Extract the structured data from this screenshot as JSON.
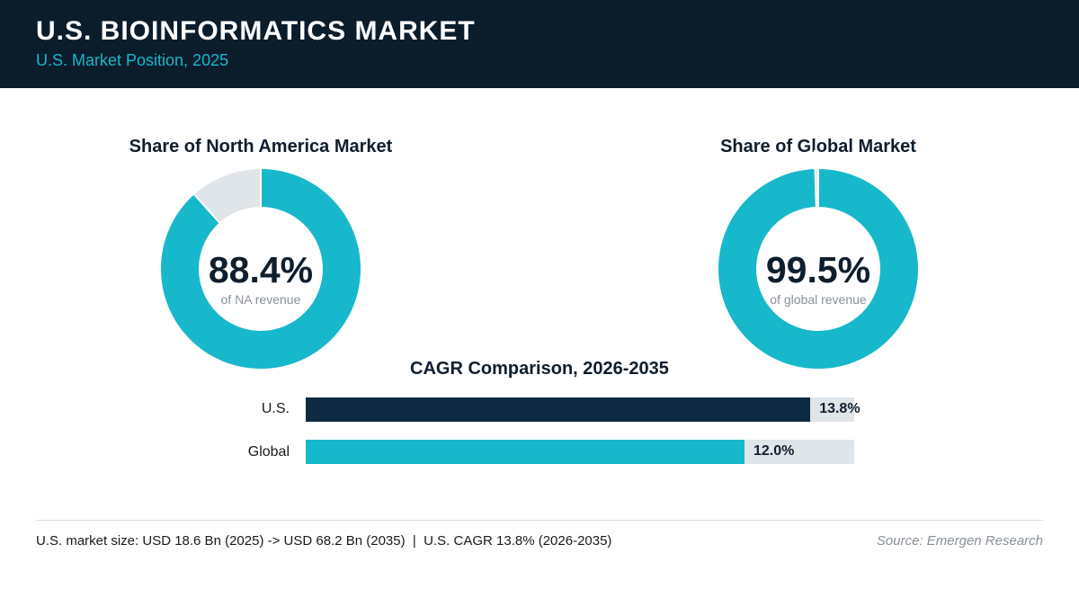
{
  "header": {
    "title": "U.S. BIOINFORMATICS MARKET",
    "subtitle": "U.S. Market Position, 2025"
  },
  "colors": {
    "header_bg": "#0b1c2b",
    "accent": "#17b8cc",
    "navy": "#0e2a42",
    "remainder": "#e0e5ea"
  },
  "chart_data": [
    {
      "type": "pie",
      "title": "Share of North America Market",
      "values": [
        88.4,
        11.6
      ],
      "center_value": "88.4%",
      "center_label": "of NA revenue"
    },
    {
      "type": "pie",
      "title": "Share of Global Market",
      "values": [
        99.5,
        0.5
      ],
      "center_value": "99.5%",
      "center_label": "of global revenue"
    },
    {
      "type": "bar",
      "title": "CAGR Comparison, 2026-2035",
      "categories": [
        "U.S.",
        "Global"
      ],
      "values": [
        13.8,
        12.0
      ],
      "value_labels": [
        "13.8%",
        "12.0%"
      ],
      "xlim": [
        0,
        15
      ]
    }
  ],
  "footer": {
    "note": "U.S. market size: USD 18.6 Bn (2025) -> USD 68.2 Bn (2035)  |  U.S. CAGR 13.8% (2026-2035)",
    "source": "Source: Emergen Research"
  }
}
